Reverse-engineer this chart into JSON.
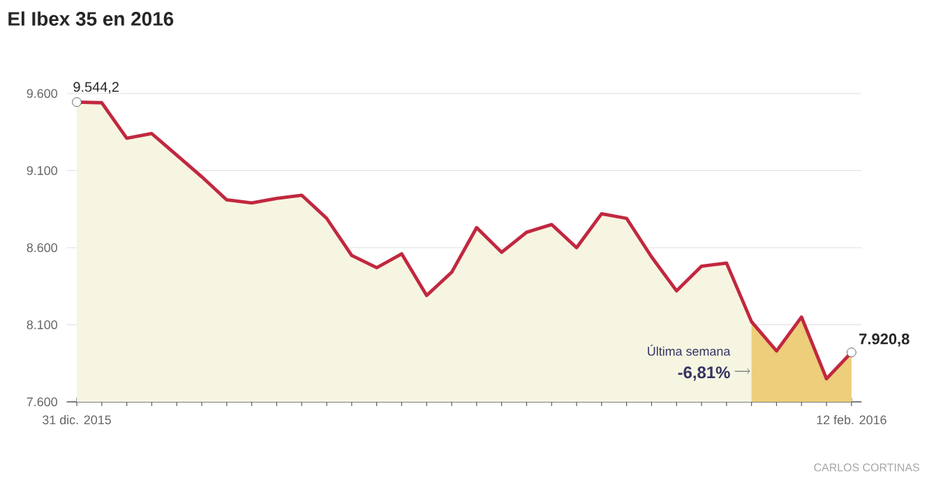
{
  "chart_data": {
    "type": "area",
    "title": "El Ibex 35 en 2016",
    "categories": [
      "31 dic. 2015",
      null,
      null,
      null,
      null,
      null,
      null,
      null,
      null,
      null,
      null,
      null,
      null,
      null,
      null,
      null,
      null,
      null,
      null,
      null,
      null,
      null,
      null,
      null,
      null,
      null,
      null,
      null,
      null,
      null,
      null,
      "12 feb. 2016"
    ],
    "series": [
      {
        "color": "#c1283f",
        "values": [
          9544.2,
          9540,
          9310,
          9340,
          9200,
          9060,
          8910,
          8890,
          8920,
          8940,
          8790,
          8550,
          8470,
          8560,
          8290,
          8440,
          8730,
          8570,
          8700,
          8750,
          8600,
          8820,
          8790,
          8540,
          8320,
          8480,
          8500,
          8120,
          7930,
          8150,
          7750,
          7920.8
        ],
        "value_labels": [
          "9.544,2",
          null,
          null,
          null,
          null,
          null,
          null,
          null,
          null,
          null,
          null,
          null,
          null,
          null,
          null,
          null,
          null,
          null,
          null,
          null,
          null,
          null,
          null,
          null,
          null,
          null,
          null,
          null,
          null,
          null,
          null,
          "7.920,8"
        ]
      },
      {
        "type": "area",
        "color": "#ecce7b",
        "values": [
          null,
          null,
          null,
          null,
          null,
          null,
          null,
          null,
          null,
          null,
          null,
          null,
          null,
          null,
          null,
          null,
          null,
          null,
          null,
          null,
          null,
          null,
          null,
          null,
          null,
          null,
          null,
          8120,
          7930,
          8150,
          7750,
          7920.8
        ]
      }
    ],
    "ylim": [
      7600,
      9600
    ],
    "yticks": [
      {
        "value": 7600,
        "label": "7.600"
      },
      {
        "value": 8100,
        "label": "8.100"
      },
      {
        "value": 8600,
        "label": "8.600"
      },
      {
        "value": 9100,
        "label": "9.100"
      },
      {
        "value": 9600,
        "label": "9.600"
      }
    ],
    "grid": "y",
    "marker": "none",
    "line_style": "solid",
    "annotations": [
      "Última semana",
      "-6,81%",
      "CARLOS CORTINAS"
    ]
  }
}
